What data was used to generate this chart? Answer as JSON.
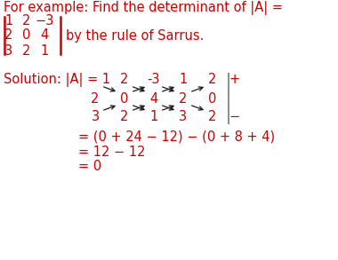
{
  "bg_color": "#ffffff",
  "text_color": "#cc0000",
  "arrow_color": "#1a1a1a",
  "line_color": "#808080",
  "font_size_title": 10.5,
  "font_size_body": 10.5,
  "title_line": "For example: Find the determinant of |A| =",
  "matrix_rows": [
    [
      "1",
      "2",
      "−3"
    ],
    [
      "2",
      "0",
      "4"
    ],
    [
      "3",
      "2",
      "1"
    ]
  ],
  "by_rule_text": "by the rule of Sarrus.",
  "row1_nums": [
    "1",
    "2",
    "-3",
    "1",
    "2"
  ],
  "row2_nums": [
    "2",
    "0",
    "4",
    "2",
    "0"
  ],
  "row3_nums": [
    "3",
    "2",
    "1",
    "3",
    "2"
  ],
  "calc_line1": "= (0 + 24 − 12) − (0 + 8 + 4)",
  "calc_line2": "= 12 − 12",
  "calc_line3": "= 0",
  "plus_sign": "+",
  "minus_sign": "−"
}
